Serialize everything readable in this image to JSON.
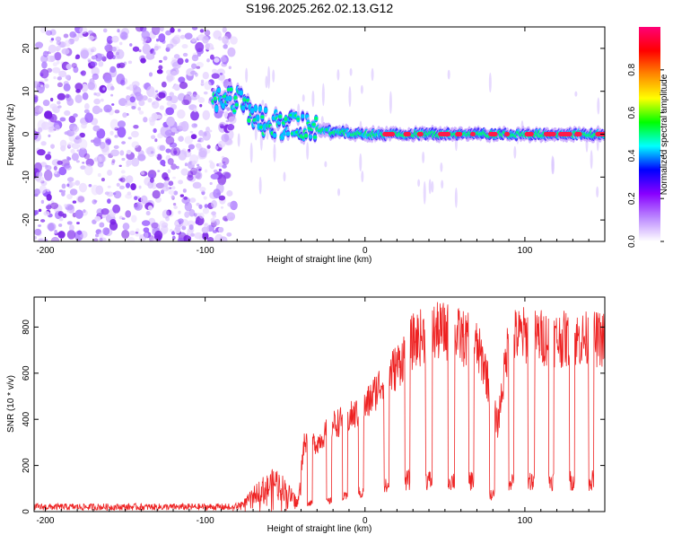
{
  "title": "S196.2025.262.02.13.G12",
  "chart_data": [
    {
      "type": "heatmap",
      "title": "S196.2025.262.02.13.G12",
      "xlabel": "Height of straight line (km)",
      "ylabel": "Frequency (Hz)",
      "xlim": [
        -207,
        150
      ],
      "ylim": [
        -25,
        25
      ],
      "xticks": [
        -200,
        -100,
        0,
        100
      ],
      "xtick_labels": [
        "-200",
        "-100",
        "0",
        "100"
      ],
      "yticks": [
        -20,
        -10,
        0,
        10,
        20
      ],
      "ytick_labels": [
        "-20",
        "-10",
        "0",
        "10",
        "20"
      ],
      "noise_region_km": [
        -207,
        -82
      ],
      "signal_track": [
        {
          "x": -95,
          "freq": 8.5
        },
        {
          "x": -80,
          "freq": 8
        },
        {
          "x": -70,
          "freq": 4
        },
        {
          "x": -60,
          "freq": 2.5
        },
        {
          "x": -50,
          "freq": 2
        },
        {
          "x": -40,
          "freq": 1.5
        },
        {
          "x": -30,
          "freq": 1
        },
        {
          "x": -20,
          "freq": 0.5
        },
        {
          "x": 0,
          "freq": 0
        },
        {
          "x": 150,
          "freq": 0
        }
      ],
      "colorbar": {
        "label": "Normalized spectral amplitude",
        "ticks": [
          0.0,
          0.2,
          0.4,
          0.6,
          0.8
        ],
        "tick_labels": [
          "0.0",
          "0.2",
          "0.4",
          "0.6",
          "0.8"
        ],
        "range": [
          0,
          1
        ],
        "colors": [
          "#ffffff",
          "#bb88ff",
          "#8800ff",
          "#0000ff",
          "#00ffff",
          "#00ff00",
          "#ffff00",
          "#ff8800",
          "#ff0000",
          "#ff0077"
        ]
      }
    },
    {
      "type": "line",
      "xlabel": "Height of straight line (km)",
      "ylabel": "SNR (10 * v/v)",
      "xlim": [
        -207,
        150
      ],
      "ylim": [
        0,
        930
      ],
      "xticks": [
        -200,
        -100,
        0,
        100
      ],
      "xtick_labels": [
        "-200",
        "-100",
        "0",
        "100"
      ],
      "yticks": [
        0,
        200,
        400,
        600,
        800
      ],
      "ytick_labels": [
        "0",
        "200",
        "400",
        "600",
        "800"
      ],
      "series": [
        {
          "name": "SNR",
          "color": "#ee2222",
          "envelope": [
            {
              "x": -207,
              "y": 20
            },
            {
              "x": -85,
              "y": 20
            },
            {
              "x": -75,
              "y": 60
            },
            {
              "x": -65,
              "y": 150
            },
            {
              "x": -55,
              "y": 200
            },
            {
              "x": -42,
              "y": 60
            },
            {
              "x": -38,
              "y": 340
            },
            {
              "x": -30,
              "y": 330
            },
            {
              "x": -20,
              "y": 420
            },
            {
              "x": -10,
              "y": 450
            },
            {
              "x": 0,
              "y": 500
            },
            {
              "x": 10,
              "y": 620
            },
            {
              "x": 20,
              "y": 700
            },
            {
              "x": 30,
              "y": 820
            },
            {
              "x": 40,
              "y": 860
            },
            {
              "x": 50,
              "y": 870
            },
            {
              "x": 60,
              "y": 840
            },
            {
              "x": 65,
              "y": 820
            },
            {
              "x": 70,
              "y": 790
            },
            {
              "x": 75,
              "y": 700
            },
            {
              "x": 80,
              "y": 500
            },
            {
              "x": 83,
              "y": 420
            },
            {
              "x": 90,
              "y": 840
            },
            {
              "x": 100,
              "y": 850
            },
            {
              "x": 110,
              "y": 840
            },
            {
              "x": 120,
              "y": 830
            },
            {
              "x": 130,
              "y": 830
            },
            {
              "x": 140,
              "y": 830
            },
            {
              "x": 150,
              "y": 830
            }
          ],
          "dropouts": [
            {
              "x_start": -36,
              "x_end": -33,
              "y": 40
            },
            {
              "x_start": -24,
              "x_end": -21,
              "y": 50
            },
            {
              "x_start": -14,
              "x_end": -11,
              "y": 70
            },
            {
              "x_start": -4,
              "x_end": -1,
              "y": 90
            },
            {
              "x_start": 12,
              "x_end": 15,
              "y": 120
            },
            {
              "x_start": 25,
              "x_end": 28,
              "y": 150
            },
            {
              "x_start": 38,
              "x_end": 42,
              "y": 150
            },
            {
              "x_start": 52,
              "x_end": 56,
              "y": 150
            },
            {
              "x_start": 65,
              "x_end": 68,
              "y": 150
            },
            {
              "x_start": 78,
              "x_end": 81,
              "y": 80
            },
            {
              "x_start": 90,
              "x_end": 93,
              "y": 150
            },
            {
              "x_start": 102,
              "x_end": 106,
              "y": 150
            },
            {
              "x_start": 115,
              "x_end": 118,
              "y": 150
            },
            {
              "x_start": 128,
              "x_end": 131,
              "y": 150
            },
            {
              "x_start": 140,
              "x_end": 143,
              "y": 150
            }
          ]
        }
      ]
    }
  ]
}
